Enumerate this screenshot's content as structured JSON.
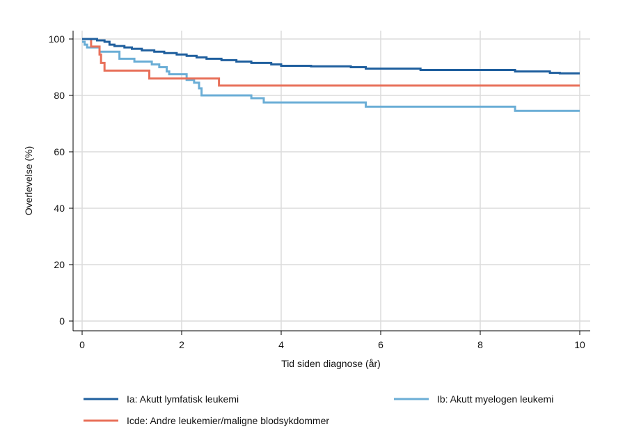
{
  "chart_data": {
    "type": "line",
    "step": true,
    "xlabel": "Tid siden diagnose (år)",
    "ylabel": "Overlevelse (%)",
    "xlim": [
      0,
      10
    ],
    "ylim": [
      0,
      100
    ],
    "xticks": [
      0,
      2,
      4,
      6,
      8,
      10
    ],
    "yticks": [
      0,
      20,
      40,
      60,
      80,
      100
    ],
    "xtick_labels": [
      "0",
      "2",
      "4",
      "6",
      "8",
      "10"
    ],
    "ytick_labels": [
      "0",
      "20",
      "40",
      "60",
      "80",
      "100"
    ],
    "grid": true,
    "legend_position": "bottom",
    "series": [
      {
        "name": "Ia: Akutt lymfatisk leukemi",
        "color": "#1f5f9e",
        "points": [
          [
            0,
            100
          ],
          [
            0.3,
            99.5
          ],
          [
            0.45,
            99
          ],
          [
            0.55,
            98
          ],
          [
            0.65,
            97.5
          ],
          [
            0.85,
            97
          ],
          [
            1.0,
            96.5
          ],
          [
            1.2,
            96
          ],
          [
            1.45,
            95.5
          ],
          [
            1.65,
            95
          ],
          [
            1.9,
            94.5
          ],
          [
            2.1,
            94
          ],
          [
            2.3,
            93.5
          ],
          [
            2.5,
            93
          ],
          [
            2.8,
            92.5
          ],
          [
            3.1,
            92
          ],
          [
            3.4,
            91.5
          ],
          [
            3.8,
            91
          ],
          [
            4.0,
            90.5
          ],
          [
            4.6,
            90.3
          ],
          [
            5.4,
            90
          ],
          [
            5.7,
            89.5
          ],
          [
            6.8,
            89
          ],
          [
            8.7,
            88.5
          ],
          [
            9.4,
            88
          ],
          [
            9.6,
            87.8
          ],
          [
            10,
            87.8
          ]
        ]
      },
      {
        "name": "Ib: Akutt myelogen leukemi",
        "color": "#6baed6",
        "points": [
          [
            0,
            99
          ],
          [
            0.05,
            98
          ],
          [
            0.1,
            97
          ],
          [
            0.35,
            95.5
          ],
          [
            0.75,
            93
          ],
          [
            1.05,
            92
          ],
          [
            1.4,
            91
          ],
          [
            1.55,
            90
          ],
          [
            1.7,
            88.5
          ],
          [
            1.75,
            87.5
          ],
          [
            2.1,
            85.5
          ],
          [
            2.25,
            84.5
          ],
          [
            2.35,
            82.5
          ],
          [
            2.4,
            80
          ],
          [
            3.4,
            79
          ],
          [
            3.65,
            77.5
          ],
          [
            5.7,
            76
          ],
          [
            8.7,
            74.5
          ],
          [
            10,
            74.5
          ]
        ]
      },
      {
        "name": "Icde: Andre leukemier/maligne blodsykdommer",
        "color": "#e8705a",
        "points": [
          [
            0,
            100
          ],
          [
            0.18,
            97.3
          ],
          [
            0.35,
            94.5
          ],
          [
            0.38,
            91.5
          ],
          [
            0.45,
            88.8
          ],
          [
            1.35,
            86
          ],
          [
            2.75,
            83.5
          ],
          [
            10,
            83.5
          ]
        ]
      }
    ]
  }
}
